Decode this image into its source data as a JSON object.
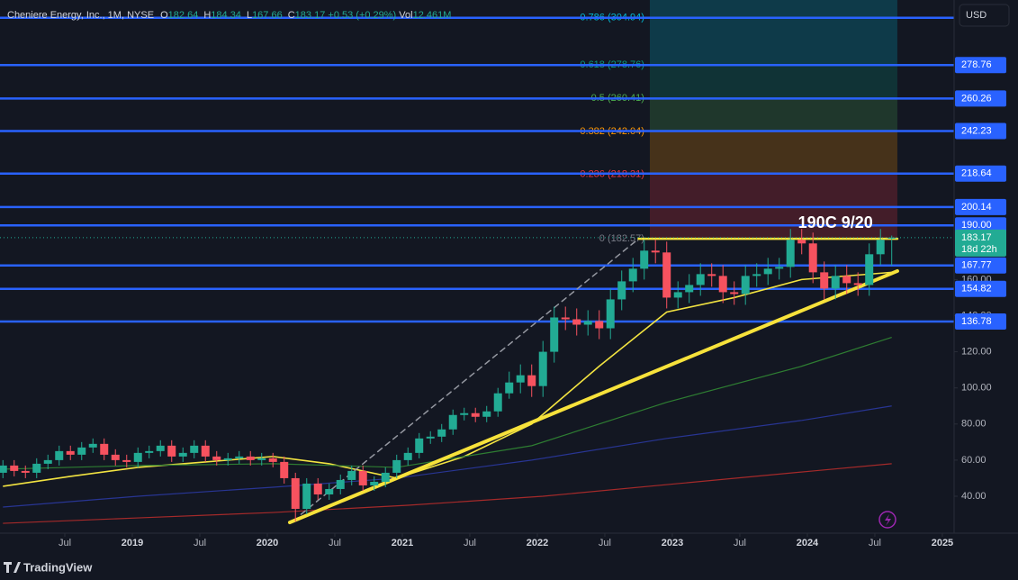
{
  "header": {
    "symbol": "Cheniere Energy, Inc., 1M, NYSE",
    "ohlc": [
      {
        "key": "O",
        "value": 182.64
      },
      {
        "key": "H",
        "value": 184.34
      },
      {
        "key": "L",
        "value": 167.66
      },
      {
        "key": "C",
        "value": 183.17
      }
    ],
    "change": "+0.53 (+0.29%)",
    "volume_key": "Vol",
    "volume": "12.461M"
  },
  "currency": "USD",
  "brand": "TradingView",
  "chart_data": {
    "type": "candlestick",
    "xlim": [
      2018.02,
      2025.087
    ],
    "ylim": [
      19.55,
      314.8
    ],
    "xticks": [
      {
        "value": 2018.5,
        "label": "Jul"
      },
      2019,
      {
        "value": 2019.5,
        "label": "Jul"
      },
      2020,
      {
        "value": 2020.5,
        "label": "Jul"
      },
      2021,
      {
        "value": 2021.5,
        "label": "Jul"
      },
      2022,
      {
        "value": 2022.5,
        "label": "Jul"
      },
      2023,
      {
        "value": 2023.5,
        "label": "Jul"
      },
      2024,
      {
        "value": 2024.5,
        "label": "Jul"
      },
      2025
    ],
    "yticks": [
      {
        "value": 40,
        "label": "40.00"
      },
      {
        "value": 60,
        "label": "60.00"
      },
      {
        "value": 80,
        "label": "80.00"
      },
      {
        "value": 100,
        "label": "100.00"
      },
      {
        "value": 120,
        "label": "120.00"
      },
      {
        "value": 140,
        "label": "140.00"
      },
      {
        "value": 160,
        "label": "160.00"
      }
    ],
    "up_color": "#22ab94",
    "down_color": "#f7525f",
    "x": [
      "2018-01",
      "2018-02",
      "2018-03",
      "2018-04",
      "2018-05",
      "2018-06",
      "2018-07",
      "2018-08",
      "2018-09",
      "2018-10",
      "2018-11",
      "2018-12",
      "2019-01",
      "2019-02",
      "2019-03",
      "2019-04",
      "2019-05",
      "2019-06",
      "2019-07",
      "2019-08",
      "2019-09",
      "2019-10",
      "2019-11",
      "2019-12",
      "2020-01",
      "2020-02",
      "2020-03",
      "2020-04",
      "2020-05",
      "2020-06",
      "2020-07",
      "2020-08",
      "2020-09",
      "2020-10",
      "2020-11",
      "2020-12",
      "2021-01",
      "2021-02",
      "2021-03",
      "2021-04",
      "2021-05",
      "2021-06",
      "2021-07",
      "2021-08",
      "2021-09",
      "2021-10",
      "2021-11",
      "2021-12",
      "2022-01",
      "2022-02",
      "2022-03",
      "2022-04",
      "2022-05",
      "2022-06",
      "2022-07",
      "2022-08",
      "2022-09",
      "2022-10",
      "2022-11",
      "2022-12",
      "2023-01",
      "2023-02",
      "2023-03",
      "2023-04",
      "2023-05",
      "2023-06",
      "2023-07",
      "2023-08",
      "2023-09",
      "2023-10",
      "2023-11",
      "2023-12",
      "2024-01",
      "2024-02",
      "2024-03",
      "2024-04",
      "2024-05",
      "2024-06",
      "2024-07",
      "2024-08"
    ],
    "open": [
      53,
      57,
      54,
      53,
      58,
      60,
      65,
      63,
      67,
      69,
      63,
      60,
      59,
      64,
      65,
      68,
      62,
      64,
      68,
      62,
      60,
      61,
      62,
      60,
      61,
      59,
      50,
      33,
      47,
      41,
      44,
      49,
      54,
      46,
      48,
      53,
      60,
      64,
      72,
      73,
      77,
      85,
      86,
      84,
      87,
      97,
      103,
      107,
      101,
      120,
      139,
      138,
      135,
      137,
      133,
      149,
      159,
      166,
      176,
      175,
      150,
      153,
      157,
      163,
      162,
      153,
      152,
      162,
      163,
      166,
      167,
      182,
      180,
      164,
      155,
      162,
      158,
      157,
      174,
      182.64
    ],
    "high": [
      60,
      60,
      57,
      61,
      63,
      68,
      68,
      70,
      72,
      72,
      66,
      63,
      67,
      68,
      71,
      71,
      67,
      71,
      71,
      65,
      64,
      65,
      65,
      64,
      64,
      62,
      53,
      50,
      50,
      47,
      52,
      57,
      57,
      51,
      56,
      63,
      67,
      75,
      76,
      80,
      88,
      89,
      89,
      90,
      100,
      109,
      113,
      113,
      126,
      145,
      145,
      144,
      143,
      143,
      155,
      165,
      172,
      182,
      182,
      181,
      159,
      163,
      169,
      169,
      168,
      159,
      168,
      169,
      172,
      172,
      188,
      188,
      186,
      170,
      168,
      168,
      164,
      180,
      188,
      184.34
    ],
    "low": [
      50,
      51,
      50,
      50,
      55,
      57,
      60,
      60,
      64,
      60,
      57,
      56,
      56,
      61,
      62,
      59,
      59,
      61,
      59,
      57,
      57,
      58,
      57,
      57,
      56,
      47,
      26,
      30,
      38,
      38,
      41,
      46,
      43,
      43,
      45,
      50,
      57,
      61,
      69,
      70,
      74,
      82,
      81,
      81,
      84,
      94,
      97,
      95,
      95,
      114,
      132,
      129,
      129,
      127,
      127,
      143,
      153,
      160,
      169,
      144,
      144,
      147,
      151,
      156,
      147,
      146,
      146,
      156,
      157,
      160,
      161,
      174,
      158,
      149,
      149,
      152,
      151,
      151,
      168,
      167.66
    ],
    "close": [
      57,
      54,
      53,
      58,
      60,
      65,
      63,
      67,
      69,
      63,
      60,
      59,
      64,
      65,
      68,
      62,
      64,
      68,
      62,
      60,
      61,
      62,
      60,
      61,
      59,
      50,
      33,
      47,
      41,
      44,
      49,
      54,
      46,
      48,
      53,
      60,
      64,
      72,
      73,
      77,
      85,
      86,
      84,
      87,
      97,
      103,
      107,
      101,
      120,
      139,
      138,
      135,
      137,
      133,
      149,
      159,
      166,
      176,
      175,
      150,
      153,
      157,
      163,
      162,
      153,
      152,
      162,
      163,
      166,
      167,
      182,
      180,
      164,
      155,
      162,
      158,
      157,
      174,
      182,
      183.17
    ],
    "moving_averages": [
      {
        "color": "#f2e341",
        "width": 1.6,
        "x": [
          "2018-01",
          "2018-07",
          "2019-01",
          "2019-07",
          "2020-01",
          "2020-06",
          "2020-12",
          "2021-06",
          "2021-12",
          "2022-06",
          "2022-12",
          "2023-06",
          "2023-12",
          "2024-08"
        ],
        "values": [
          45.5,
          51,
          56,
          59,
          62,
          58,
          50,
          62,
          80,
          112,
          142,
          150,
          160,
          164
        ]
      },
      {
        "color": "#2e7d32",
        "width": 1.2,
        "x": [
          "2018-01",
          "2019-01",
          "2020-01",
          "2020-12",
          "2021-12",
          "2022-12",
          "2023-12",
          "2024-08"
        ],
        "values": [
          55,
          57,
          58,
          56,
          68,
          92,
          112,
          128
        ]
      },
      {
        "color": "#283593",
        "width": 1.2,
        "x": [
          "2018-01",
          "2019-01",
          "2020-01",
          "2020-12",
          "2021-12",
          "2022-12",
          "2023-12",
          "2024-08"
        ],
        "values": [
          34,
          40,
          45,
          50,
          60,
          72,
          82,
          90
        ]
      },
      {
        "color": "#a52a2a",
        "width": 1.2,
        "x": [
          "2018-01",
          "2019-01",
          "2020-01",
          "2021-01",
          "2022-01",
          "2023-01",
          "2024-01",
          "2024-08"
        ],
        "values": [
          25,
          28,
          31,
          35,
          40,
          47,
          54,
          58
        ]
      }
    ],
    "levels": [
      278.76,
      260.26,
      242.23,
      218.64,
      200.14,
      {
        "value": 190,
        "label": "190.00"
      },
      167.77,
      154.82,
      136.78
    ],
    "extra_levels": [
      304.94
    ],
    "level_color": "#2962ff",
    "price_label": {
      "value": 183.17,
      "countdown": "18d 22h"
    },
    "fib": {
      "x": [
        "2022-11",
        "2024-09"
      ],
      "levels": [
        {
          "price": 182.57,
          "label": "0 (182.57)",
          "color": "#787b86"
        },
        {
          "price": 218.31,
          "label": "0.236 (218.31)",
          "color": "#f23645"
        },
        {
          "price": 242.04,
          "label": "0.382 (242.04)",
          "color": "#ff9800"
        },
        {
          "price": 260.41,
          "label": "0.5 (260.41)",
          "color": "#4caf50"
        },
        {
          "price": 278.76,
          "label": "0.618 (278.76)",
          "color": "#089981"
        },
        {
          "price": 304.94,
          "label": "0.786 (304.94)",
          "color": "#00bcd4"
        }
      ]
    },
    "drawings": [
      {
        "kind": "trend",
        "color": "#f7e23b",
        "width": 4,
        "x": [
          "2020-03",
          "2024-09"
        ],
        "values": [
          25.5,
          164.7
        ]
      },
      {
        "kind": "trend",
        "color": "#f7e23b",
        "width": 2.5,
        "x": [
          "2022-10",
          "2024-09"
        ],
        "values": [
          182.57,
          182.57
        ]
      },
      {
        "kind": "dashed",
        "color": "#9598a1",
        "width": 1.5,
        "x": [
          "2020-04",
          "2022-10"
        ],
        "values": [
          30,
          182.57
        ]
      }
    ],
    "annotation": {
      "text": "190C 9/20",
      "x": "2024-03",
      "value": 191
    }
  }
}
